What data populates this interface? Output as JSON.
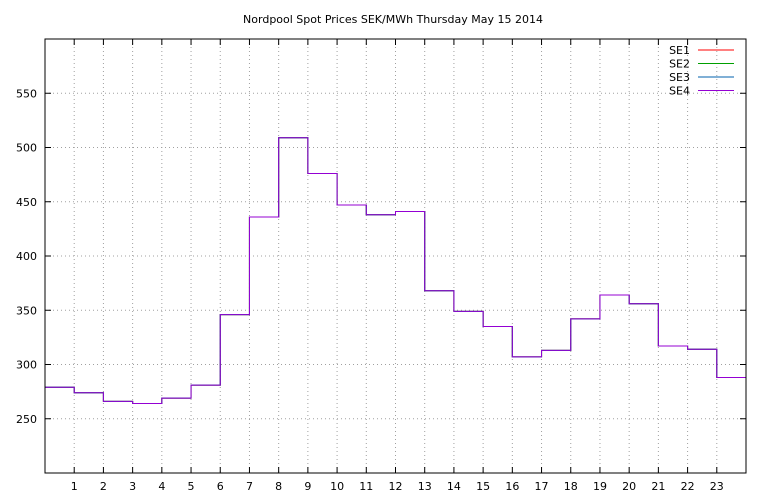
{
  "chart_data": {
    "type": "line",
    "step": true,
    "title": "Nordpool Spot Prices SEK/MWh Thursday May 15 2014",
    "xlabel": "",
    "ylabel": "",
    "xlim": [
      0,
      24
    ],
    "ylim": [
      200,
      600
    ],
    "xticks": [
      "1",
      "2",
      "3",
      "4",
      "5",
      "6",
      "7",
      "8",
      "9",
      "10",
      "11",
      "12",
      "13",
      "14",
      "15",
      "16",
      "17",
      "18",
      "19",
      "20",
      "21",
      "22",
      "23"
    ],
    "yticks": [
      "250",
      "300",
      "350",
      "400",
      "450",
      "500",
      "550"
    ],
    "grid": true,
    "legend_position": "top-right",
    "hours": [
      0,
      1,
      2,
      3,
      4,
      5,
      6,
      7,
      8,
      9,
      10,
      11,
      12,
      13,
      14,
      15,
      16,
      17,
      18,
      19,
      20,
      21,
      22,
      23
    ],
    "series": [
      {
        "name": "SE1",
        "color": "#ff0000",
        "values": [
          279,
          274,
          266,
          264,
          269,
          281,
          346,
          436,
          509,
          476,
          447,
          438,
          441,
          368,
          349,
          335,
          307,
          313,
          342,
          364,
          356,
          317,
          314,
          288
        ]
      },
      {
        "name": "SE2",
        "color": "#00a000",
        "values": [
          279,
          274,
          266,
          264,
          269,
          281,
          346,
          436,
          509,
          476,
          447,
          438,
          441,
          368,
          349,
          335,
          307,
          313,
          342,
          364,
          356,
          317,
          314,
          288
        ]
      },
      {
        "name": "SE3",
        "color": "#0060ad",
        "values": [
          279,
          274,
          266,
          264,
          269,
          281,
          346,
          436,
          509,
          476,
          447,
          438,
          441,
          368,
          349,
          335,
          307,
          313,
          342,
          364,
          356,
          317,
          314,
          288
        ]
      },
      {
        "name": "SE4",
        "color": "#9400d3",
        "values": [
          279,
          274,
          266,
          264,
          269,
          281,
          346,
          436,
          509,
          476,
          447,
          438,
          441,
          368,
          349,
          335,
          307,
          313,
          342,
          364,
          356,
          317,
          314,
          288
        ]
      }
    ]
  }
}
